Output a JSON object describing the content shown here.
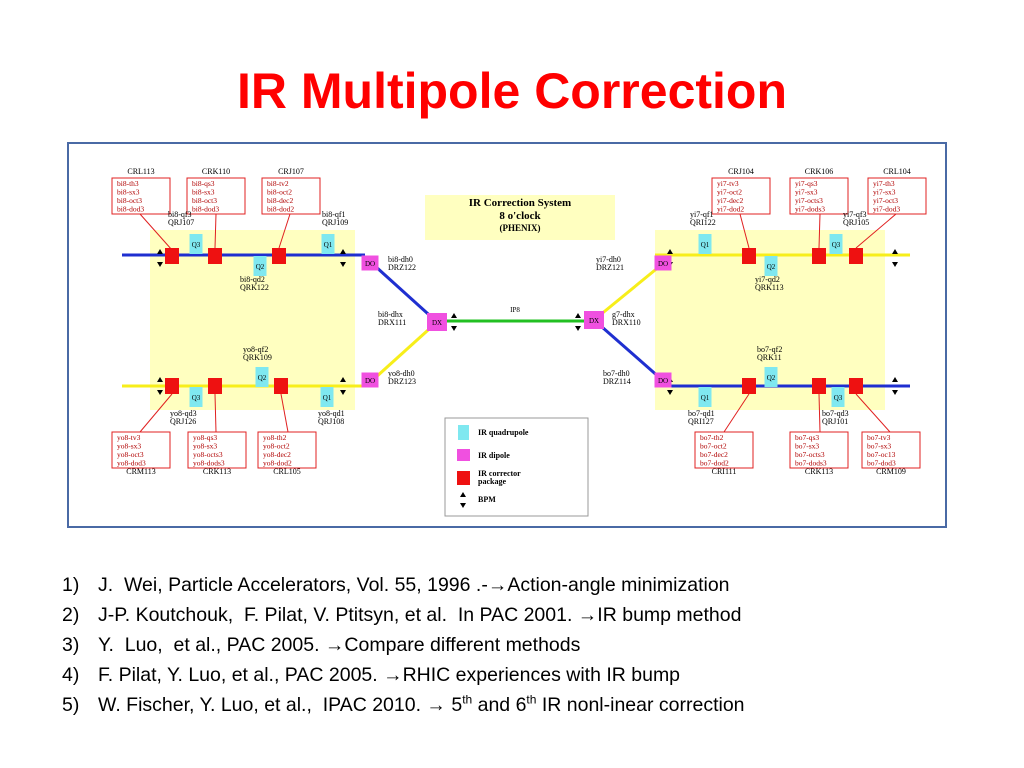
{
  "header": {
    "title": "IR Multipole Correction"
  },
  "diagram": {
    "system_title": [
      "IR Correction System",
      "8 o'clock",
      "(PHENIX)"
    ],
    "ip_label": "IP8",
    "magnet_labels": [
      "Q3",
      "Q2",
      "Q1",
      "DO",
      "Q3",
      "Q2",
      "Q1",
      "DO",
      "DX",
      "DX",
      "DO",
      "Q1",
      "Q2",
      "Q3",
      "DO",
      "Q1",
      "Q2",
      "Q3"
    ],
    "corrector_boxes": [
      {
        "title": "CRL113",
        "lines": [
          "bi8-th3",
          "bi8-sx3",
          "bi8-oct3",
          "bi8-dod3"
        ]
      },
      {
        "title": "CRK110",
        "lines": [
          "bi8-qs3",
          "bi8-sx3",
          "bi8-oct3",
          "bi8-dod3"
        ]
      },
      {
        "title": "CRJ107",
        "lines": [
          "bi8-tv2",
          "bi8-oct2",
          "bi8-dec2",
          "bi8-dod2"
        ]
      },
      {
        "title": "CRM113",
        "lines": [
          "yo8-tv3",
          "yo8-sx3",
          "yo8-oct3",
          "yo8-dod3"
        ]
      },
      {
        "title": "CRK113",
        "lines": [
          "yo8-qs3",
          "yo8-sx3",
          "yo8-octs3",
          "yo8-dods3"
        ]
      },
      {
        "title": "CRL105",
        "lines": [
          "yo8-th2",
          "yo8-oct2",
          "yo8-dec2",
          "yo8-dod2"
        ]
      },
      {
        "title": "CRJ104",
        "lines": [
          "yi7-tv3",
          "yi7-oct2",
          "yi7-dec2",
          "yi7-dod2"
        ]
      },
      {
        "title": "CRK106",
        "lines": [
          "yi7-qs3",
          "yi7-sx3",
          "yi7-octs3",
          "yi7-dods3"
        ]
      },
      {
        "title": "CRL104",
        "lines": [
          "yi7-th3",
          "yi7-sx3",
          "yi7-oct3",
          "yi7-dod3"
        ]
      },
      {
        "title": "CRI111",
        "lines": [
          "bo7-th2",
          "bo7-oct2",
          "bo7-dec2",
          "bo7-dod2"
        ]
      },
      {
        "title": "CRK113",
        "lines": [
          "bo7-qs3",
          "bo7-sx3",
          "bo7-octs3",
          "bo7-dods3"
        ]
      },
      {
        "title": "CRM109",
        "lines": [
          "bo7-tv3",
          "bo7-sx3",
          "bo7-oc13",
          "bo7-dod3"
        ]
      }
    ],
    "elements": [
      {
        "name": "bi8-qf3",
        "code": "QRJ107"
      },
      {
        "name": "bi8-qf1",
        "code": "QRJ109"
      },
      {
        "name": "bi8-qd2",
        "code": "QRK122"
      },
      {
        "name": "bi8-dh0",
        "code": "DRZ122"
      },
      {
        "name": "bi8-dhx",
        "code": "DRX111"
      },
      {
        "name": "yo8-qf2",
        "code": "QRK109"
      },
      {
        "name": "yo8-dh0",
        "code": "DRZ123"
      },
      {
        "name": "yo8-qd3",
        "code": "QRJ126"
      },
      {
        "name": "yo8-qd1",
        "code": "QRJ108"
      },
      {
        "name": "yi7-qf1",
        "code": "QRI122"
      },
      {
        "name": "yi7-qf3",
        "code": "QRJ105"
      },
      {
        "name": "yi7-dh0",
        "code": "DRZ121"
      },
      {
        "name": "yi7-qd2",
        "code": "QRK113"
      },
      {
        "name": "g7-dhx",
        "code": "DRX110"
      },
      {
        "name": "bo7-qf2",
        "code": "QRK11"
      },
      {
        "name": "bo7-dh0",
        "code": "DRZ114"
      },
      {
        "name": "bo7-qd1",
        "code": "QRI127"
      },
      {
        "name": "bo7-qd3",
        "code": "QRJ101"
      }
    ],
    "legend": [
      "IR quadrupole",
      "IR dipole",
      "IR corrector",
      "package",
      "BPM"
    ]
  },
  "references": [
    {
      "number": "1)",
      "text": "J.  Wei, Particle Accelerators, Vol. 55, 1996 .-→Action-angle minimization"
    },
    {
      "number": "2)",
      "text": "J-P. Koutchouk,  F. Pilat, V. Ptitsyn, et al.  In PAC 2001. →IR bump method"
    },
    {
      "number": "3)",
      "text": "Y.  Luo,  et al., PAC 2005. →Compare different methods"
    },
    {
      "number": "4)",
      "text": "F. Pilat, Y. Luo, et al., PAC 2005. →RHIC experiences with IR bump"
    },
    {
      "number": "5)",
      "text": "W. Fischer, Y. Luo, et al.,  IPAC 2010. → 5",
      "sup1": "th",
      "text2": " and 6",
      "sup2": "th",
      "text3": " IR nonl-inear correction"
    }
  ]
}
